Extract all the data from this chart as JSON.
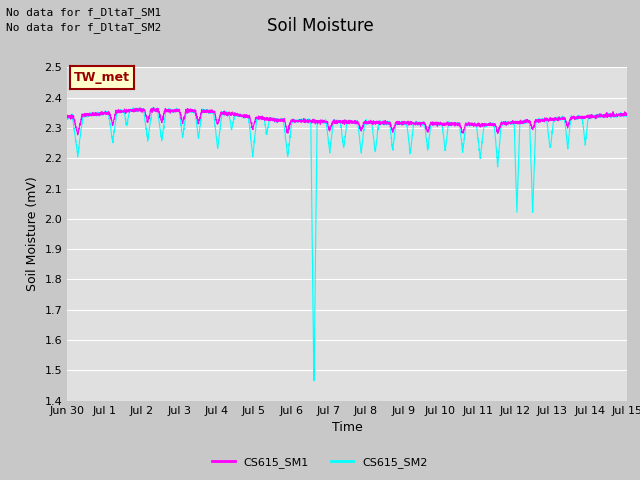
{
  "title": "Soil Moisture",
  "ylabel": "Soil Moisture (mV)",
  "xlabel": "Time",
  "ylim": [
    1.4,
    2.5
  ],
  "yticks": [
    1.4,
    1.5,
    1.6,
    1.7,
    1.8,
    1.9,
    2.0,
    2.1,
    2.2,
    2.3,
    2.4,
    2.5
  ],
  "xtick_labels": [
    "Jun 30",
    "Jul 1",
    "Jul 2",
    "Jul 3",
    "Jul 4",
    "Jul 5",
    "Jul 6",
    "Jul 7",
    "Jul 8",
    "Jul 9",
    "Jul 10",
    "Jul 11",
    "Jul 12",
    "Jul 13",
    "Jul 14",
    "Jul 15"
  ],
  "color_sm1": "#FF00FF",
  "color_sm2": "#00FFFF",
  "fig_bg_color": "#C8C8C8",
  "plot_bg_color": "#E0E0E0",
  "grid_color": "#FFFFFF",
  "no_data_text1": "No data for f_DltaT_SM1",
  "no_data_text2": "No data for f_DltaT_SM2",
  "tw_met_label": "TW_met",
  "legend_sm1": "CS615_SM1",
  "legend_sm2": "CS615_SM2",
  "title_fontsize": 12,
  "label_fontsize": 9,
  "tick_fontsize": 8,
  "nodata_fontsize": 8,
  "tw_fontsize": 9
}
